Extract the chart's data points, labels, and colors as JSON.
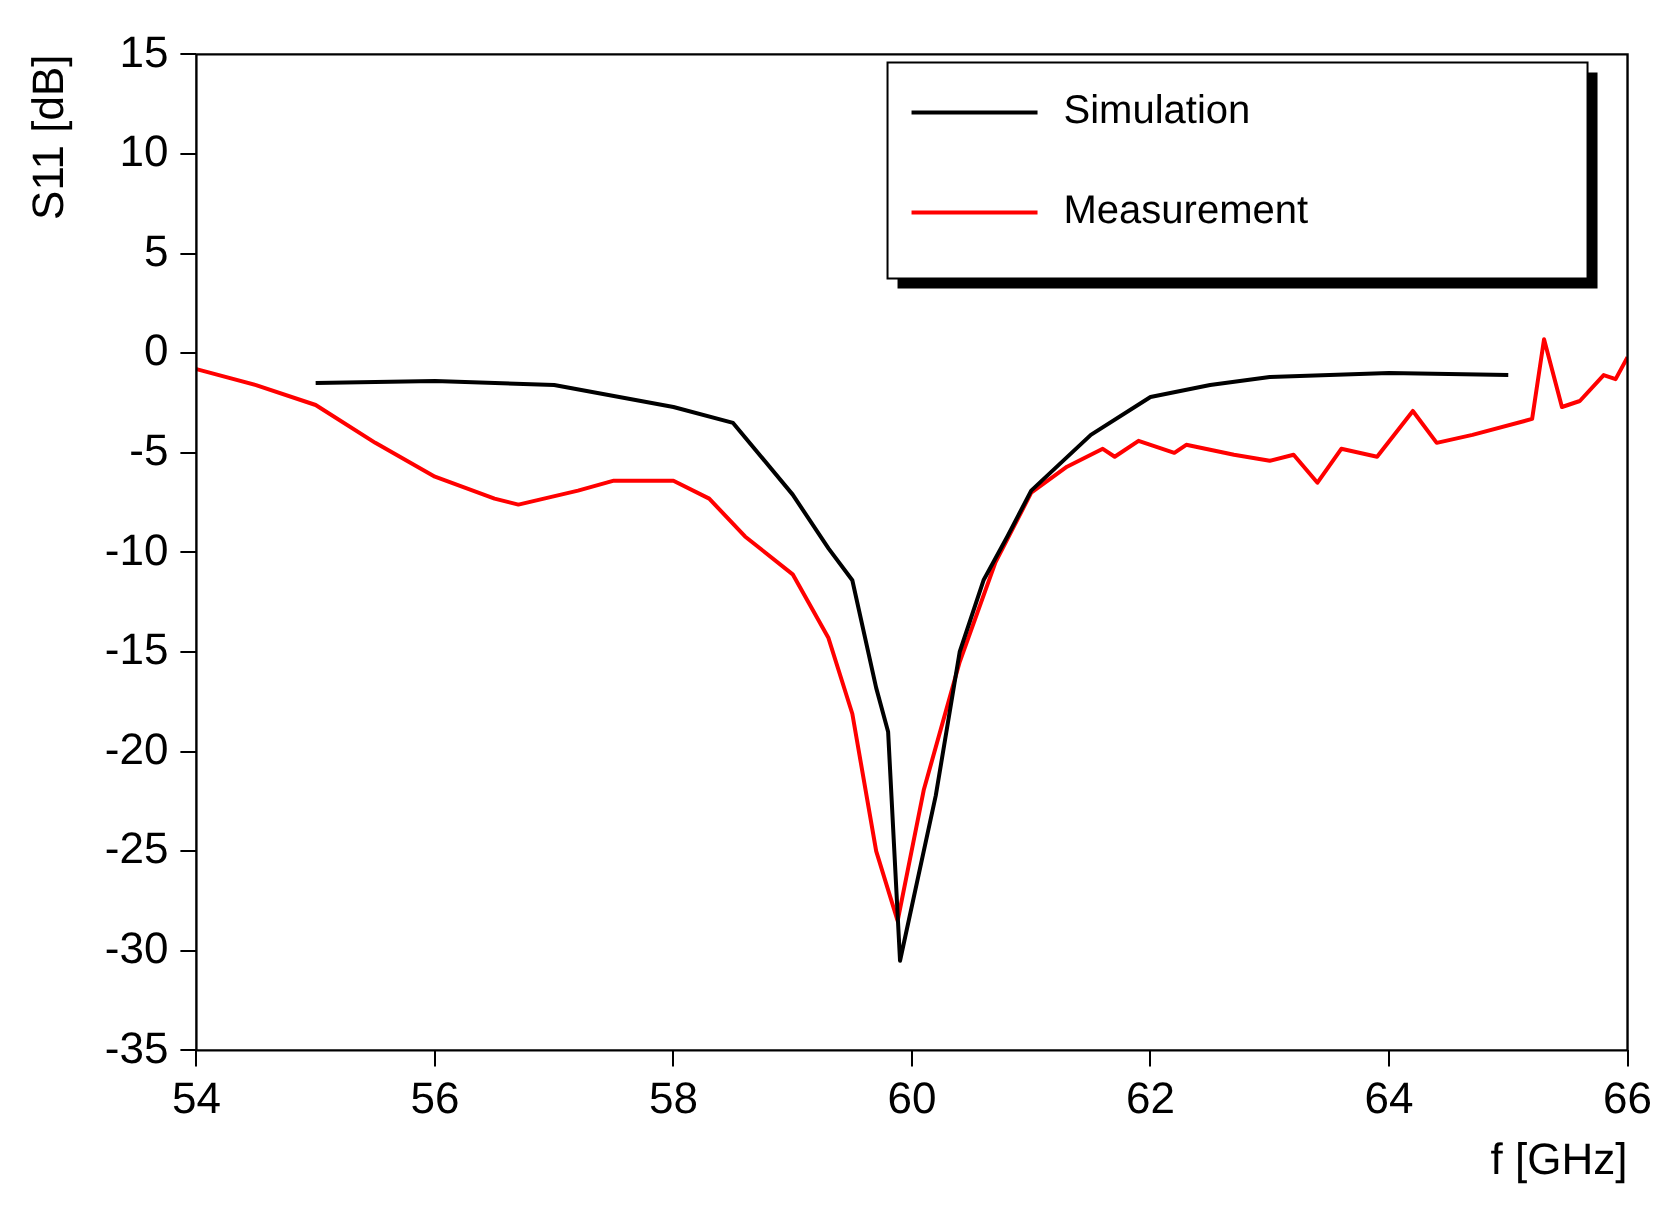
{
  "chart_data": {
    "type": "line",
    "xlabel": "f [GHz]",
    "ylabel": "S11 [dB]",
    "xlim": [
      54,
      66
    ],
    "xticks": [
      54,
      56,
      58,
      60,
      62,
      64,
      66
    ],
    "ylim": [
      -35,
      15
    ],
    "yticks": [
      -35,
      -30,
      -25,
      -20,
      -15,
      -10,
      -5,
      0,
      5,
      10,
      15
    ],
    "grid": false,
    "legend": "top right",
    "marker": "none",
    "line_style": "solid",
    "series": [
      {
        "name": "Simulation",
        "color": "#000000",
        "x": [
          55,
          56,
          57,
          58,
          58.5,
          59,
          59.3,
          59.5,
          59.7,
          59.8,
          59.9,
          60.2,
          60.4,
          60.6,
          60.8,
          61,
          61.5,
          62,
          62.5,
          63,
          64,
          65
        ],
        "values": [
          -1.5,
          -1.4,
          -1.6,
          -2.7,
          -3.5,
          -7.1,
          -9.8,
          -11.4,
          -16.8,
          -19,
          -30.5,
          -22.2,
          -15,
          -11.4,
          -9.2,
          -6.9,
          -4.1,
          -2.2,
          -1.6,
          -1.2,
          -1,
          -1.1
        ]
      },
      {
        "name": "Measurement",
        "color": "#ff0000",
        "x": [
          54,
          54.5,
          55,
          55.5,
          56,
          56.5,
          56.7,
          57.2,
          57.5,
          58,
          58.3,
          58.6,
          59,
          59.3,
          59.5,
          59.7,
          59.88,
          60.1,
          60.4,
          60.7,
          61,
          61.3,
          61.6,
          61.7,
          61.9,
          62.2,
          62.3,
          62.7,
          63,
          63.2,
          63.4,
          63.6,
          63.9,
          64.2,
          64.4,
          64.7,
          65.2,
          65.3,
          65.45,
          65.6,
          65.8,
          65.9,
          66
        ],
        "values": [
          -0.8,
          -1.6,
          -2.6,
          -4.5,
          -6.2,
          -7.3,
          -7.6,
          -6.9,
          -6.4,
          -6.4,
          -7.3,
          -9.2,
          -11.1,
          -14.3,
          -18.1,
          -25,
          -28.5,
          -21.9,
          -15.5,
          -10.5,
          -7,
          -5.7,
          -4.8,
          -5.2,
          -4.4,
          -5,
          -4.6,
          -5.1,
          -5.4,
          -5.1,
          -6.5,
          -4.8,
          -5.2,
          -2.9,
          -4.5,
          -4.1,
          -3.3,
          0.7,
          -2.7,
          -2.4,
          -1.1,
          -1.3,
          -0.2
        ]
      }
    ]
  }
}
